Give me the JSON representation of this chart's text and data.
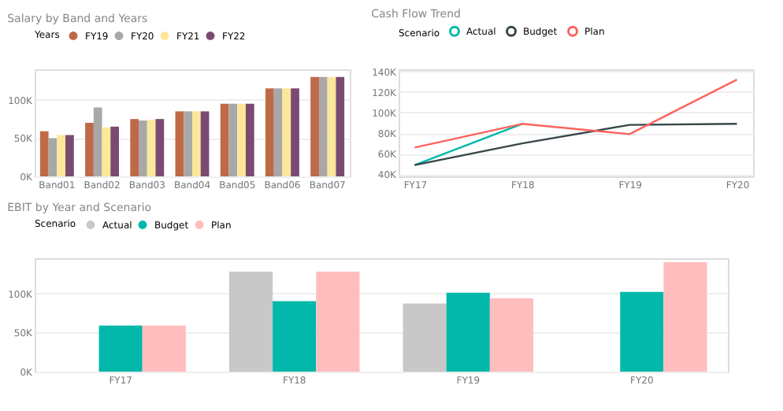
{
  "chart_data": [
    {
      "type": "bar",
      "title": "Salary by Band and Years",
      "legend_title": "Years",
      "legend": "top left",
      "grid": "y",
      "categories": [
        "Band01",
        "Band02",
        "Band03",
        "Band04",
        "Band05",
        "Band06",
        "Band07"
      ],
      "series": [
        {
          "name": "FY19",
          "color": "#bf6a47",
          "values": [
            59000,
            70000,
            75000,
            85000,
            95000,
            115000,
            130000
          ]
        },
        {
          "name": "FY20",
          "color": "#a8a8a8",
          "values": [
            50000,
            90000,
            73000,
            85000,
            95000,
            115000,
            130000
          ]
        },
        {
          "name": "FY21",
          "color": "#fde89a",
          "values": [
            54000,
            64000,
            74000,
            85000,
            95000,
            115000,
            130000
          ]
        },
        {
          "name": "FY22",
          "color": "#7b4a72",
          "values": [
            54000,
            65000,
            75000,
            85000,
            95000,
            115000,
            130000
          ]
        }
      ],
      "ylim": [
        0,
        140000
      ],
      "yticks": [
        {
          "value": 0,
          "label": "0K"
        },
        {
          "value": 50000,
          "label": "50K"
        },
        {
          "value": 100000,
          "label": "100K"
        }
      ]
    },
    {
      "type": "line",
      "title": "Cash Flow Trend",
      "legend_title": "Scenario",
      "legend": "top left",
      "grid": "y",
      "categories": [
        "FY17",
        "FY18",
        "FY19",
        "FY20"
      ],
      "series": [
        {
          "name": "Actual",
          "color": "#01b8aa",
          "values": [
            49000,
            89000,
            null,
            null
          ]
        },
        {
          "name": "Budget",
          "color": "#374649",
          "values": [
            49000,
            70000,
            88000,
            89000
          ]
        },
        {
          "name": "Plan",
          "color": "#fd625e",
          "values": [
            66000,
            89000,
            79000,
            132000
          ]
        }
      ],
      "ylim": [
        38000,
        142000
      ],
      "yticks": [
        {
          "value": 40000,
          "label": "40K"
        },
        {
          "value": 60000,
          "label": "60K"
        },
        {
          "value": 80000,
          "label": "80K"
        },
        {
          "value": 100000,
          "label": "100K"
        },
        {
          "value": 120000,
          "label": "120K"
        },
        {
          "value": 140000,
          "label": "140K"
        }
      ]
    },
    {
      "type": "bar",
      "title": "EBIT by Year and Scenario",
      "legend_title": "Scenario",
      "legend": "top left",
      "grid": "y",
      "categories": [
        "FY17",
        "FY18",
        "FY19",
        "FY20"
      ],
      "series": [
        {
          "name": "Actual",
          "color": "#c8c8c8",
          "values": [
            null,
            128000,
            87000,
            null
          ]
        },
        {
          "name": "Budget",
          "color": "#01b8aa",
          "values": [
            59000,
            90000,
            101000,
            102000
          ]
        },
        {
          "name": "Plan",
          "color": "#ffbdbd",
          "values": [
            59000,
            128000,
            94000,
            140000
          ]
        }
      ],
      "ylim": [
        0,
        145000
      ],
      "yticks": [
        {
          "value": 0,
          "label": "0K"
        },
        {
          "value": 50000,
          "label": "50K"
        },
        {
          "value": 100000,
          "label": "100K"
        }
      ]
    }
  ]
}
